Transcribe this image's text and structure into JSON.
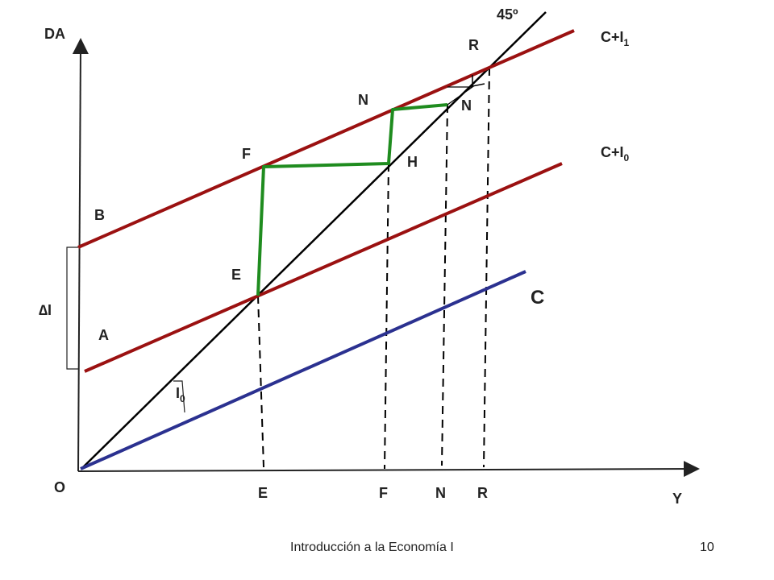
{
  "axes": {
    "y_label": "DA",
    "x_label": "Y",
    "origin_label": "O"
  },
  "curves": {
    "c_i1": {
      "label": "C+I",
      "sub": "1",
      "color": "#9b1111"
    },
    "c_i0": {
      "label": "C+I",
      "sub": "0",
      "color": "#9b1111"
    },
    "c": {
      "label": "C",
      "color": "#2b3190"
    },
    "line45": {
      "label": "45º",
      "color": "#000000"
    }
  },
  "path_color": "#1f8c1f",
  "points": {
    "E": "E",
    "F": "F",
    "H": "H",
    "N_upper": "N",
    "N_lower": "N",
    "R": "R",
    "A": "A",
    "B": "B"
  },
  "x_axis_marks": [
    "E",
    "F",
    "N",
    "R"
  ],
  "delta_i": {
    "symbol": "∆",
    "text": "I"
  },
  "i0": {
    "text": "I",
    "sub": "0"
  },
  "footer": {
    "title": "Introducción a la Economía I",
    "page": "10"
  }
}
